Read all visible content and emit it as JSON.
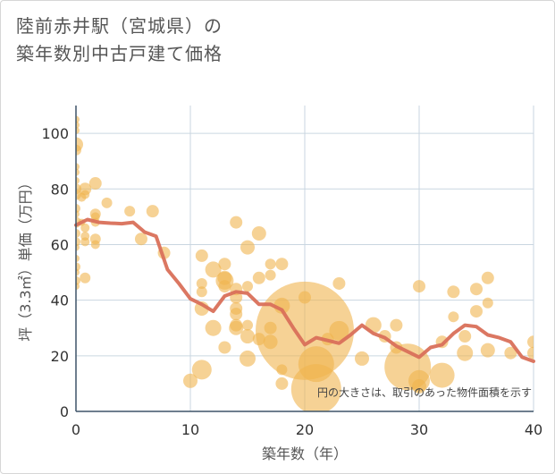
{
  "title_lines": [
    "陸前赤井駅（宮城県）の",
    "築年数別中古戸建て価格"
  ],
  "chart_data": {
    "type": "scatter",
    "title": "陸前赤井駅（宮城県）の築年数別中古戸建て価格",
    "xlabel": "築年数（年）",
    "ylabel": "坪（3.3㎡）単価（万円）",
    "xlim": [
      0,
      40
    ],
    "ylim": [
      0,
      110
    ],
    "xticks": [
      0,
      10,
      20,
      30,
      40
    ],
    "yticks": [
      0,
      20,
      40,
      60,
      80,
      100
    ],
    "grid": true,
    "annotation": "円の大きさは、取引のあった物件面積を示す",
    "colors": {
      "bubble": "#f0b44e",
      "line": "#d9705a",
      "grid": "#c9d6e0",
      "axis": "#3e5468"
    },
    "bubbles": [
      [
        0,
        105,
        4
      ],
      [
        0,
        103,
        4
      ],
      [
        0,
        101,
        4
      ],
      [
        0,
        96,
        8
      ],
      [
        0,
        94,
        6
      ],
      [
        0,
        88,
        4
      ],
      [
        0,
        86,
        4
      ],
      [
        0,
        83,
        4
      ],
      [
        0,
        80,
        6
      ],
      [
        0,
        78,
        6
      ],
      [
        0,
        73,
        5
      ],
      [
        0,
        71,
        4
      ],
      [
        0,
        68,
        6
      ],
      [
        0,
        64,
        5
      ],
      [
        0,
        61,
        5
      ],
      [
        0,
        59,
        4
      ],
      [
        0,
        55,
        4
      ],
      [
        0,
        52,
        5
      ],
      [
        0,
        50,
        4
      ],
      [
        0,
        47,
        5
      ],
      [
        0,
        45,
        4
      ],
      [
        0.5,
        77,
        5
      ],
      [
        0.5,
        68,
        4
      ],
      [
        0.8,
        80,
        7
      ],
      [
        0.8,
        78,
        5
      ],
      [
        0.8,
        66,
        5
      ],
      [
        0.8,
        63,
        5
      ],
      [
        0.8,
        61,
        5
      ],
      [
        0.8,
        48,
        6
      ],
      [
        1.7,
        82,
        7
      ],
      [
        1.7,
        71,
        6
      ],
      [
        1.7,
        70,
        5
      ],
      [
        1.7,
        68,
        5
      ],
      [
        1.7,
        62,
        6
      ],
      [
        1.7,
        60,
        5
      ],
      [
        2.7,
        75,
        6
      ],
      [
        4.7,
        72,
        6
      ],
      [
        5.7,
        62,
        7
      ],
      [
        6.7,
        72,
        7
      ],
      [
        7.7,
        57,
        7
      ],
      [
        10.0,
        11,
        8
      ],
      [
        11.0,
        56,
        7
      ],
      [
        11.0,
        46,
        6
      ],
      [
        11.0,
        43,
        6
      ],
      [
        11.0,
        37,
        8
      ],
      [
        11.0,
        15,
        11
      ],
      [
        12.0,
        51,
        9
      ],
      [
        12.0,
        30,
        9
      ],
      [
        13.0,
        53,
        7
      ],
      [
        13.0,
        48,
        8
      ],
      [
        13.0,
        47,
        10
      ],
      [
        13.0,
        45,
        7
      ],
      [
        13.0,
        23,
        7
      ],
      [
        14.0,
        68,
        7
      ],
      [
        14.0,
        44,
        7
      ],
      [
        14.0,
        41,
        7
      ],
      [
        14.0,
        37,
        7
      ],
      [
        14.0,
        35,
        7
      ],
      [
        14.0,
        31,
        7
      ],
      [
        14.0,
        30,
        8
      ],
      [
        15.0,
        59,
        8
      ],
      [
        15.0,
        45,
        6
      ],
      [
        15.0,
        31,
        6
      ],
      [
        15.0,
        27,
        8
      ],
      [
        15.0,
        19,
        9
      ],
      [
        16.0,
        64,
        8
      ],
      [
        16.0,
        48,
        7
      ],
      [
        16.0,
        26,
        7
      ],
      [
        17.0,
        53,
        6
      ],
      [
        17.0,
        49,
        6
      ],
      [
        17.0,
        30,
        7
      ],
      [
        17.0,
        25,
        8
      ],
      [
        18.0,
        53,
        7
      ],
      [
        18.0,
        38,
        9
      ],
      [
        18.0,
        15,
        6
      ],
      [
        18.0,
        10,
        7
      ],
      [
        20.0,
        41,
        7
      ],
      [
        20.0,
        29,
        55
      ],
      [
        21.0,
        17,
        20
      ],
      [
        21.0,
        8,
        28
      ],
      [
        22.0,
        26,
        7
      ],
      [
        23.0,
        46,
        7
      ],
      [
        23.0,
        29,
        11
      ],
      [
        25.0,
        19,
        8
      ],
      [
        26.0,
        31,
        9
      ],
      [
        27.0,
        27,
        7
      ],
      [
        28.0,
        31,
        7
      ],
      [
        28.0,
        23,
        7
      ],
      [
        29.0,
        16,
        26
      ],
      [
        30.0,
        45,
        7
      ],
      [
        30.0,
        11,
        12
      ],
      [
        30.0,
        9,
        8
      ],
      [
        32.0,
        25,
        7
      ],
      [
        32.0,
        13,
        14
      ],
      [
        33.0,
        43,
        7
      ],
      [
        33.0,
        34,
        6
      ],
      [
        34.0,
        27,
        7
      ],
      [
        34.0,
        21,
        9
      ],
      [
        35.0,
        44,
        7
      ],
      [
        35.0,
        36,
        7
      ],
      [
        36.0,
        48,
        7
      ],
      [
        36.0,
        39,
        6
      ],
      [
        36.0,
        22,
        8
      ],
      [
        38.0,
        21,
        7
      ],
      [
        40.0,
        25,
        7
      ],
      [
        40.0,
        21,
        7
      ]
    ],
    "line": {
      "x": [
        0,
        1,
        2,
        3,
        4,
        5,
        6,
        7,
        8,
        9,
        10,
        11,
        12,
        13,
        14,
        15,
        16,
        17,
        18,
        19,
        20,
        21,
        22,
        23,
        24,
        25,
        26,
        27,
        28,
        29,
        30,
        31,
        32,
        33,
        34,
        35,
        36,
        37,
        38,
        39,
        40
      ],
      "y": [
        67,
        69,
        68,
        67.7,
        67.5,
        68,
        64.5,
        63,
        51,
        46,
        40.5,
        38.5,
        36,
        41.5,
        43,
        42.5,
        38.5,
        38.5,
        36.5,
        30,
        24,
        26.5,
        25.5,
        24.5,
        27.5,
        31,
        28,
        26.5,
        23.5,
        21.5,
        19.5,
        23,
        24,
        28,
        31,
        30.5,
        27.5,
        26.5,
        25,
        19.5,
        18
      ]
    }
  }
}
